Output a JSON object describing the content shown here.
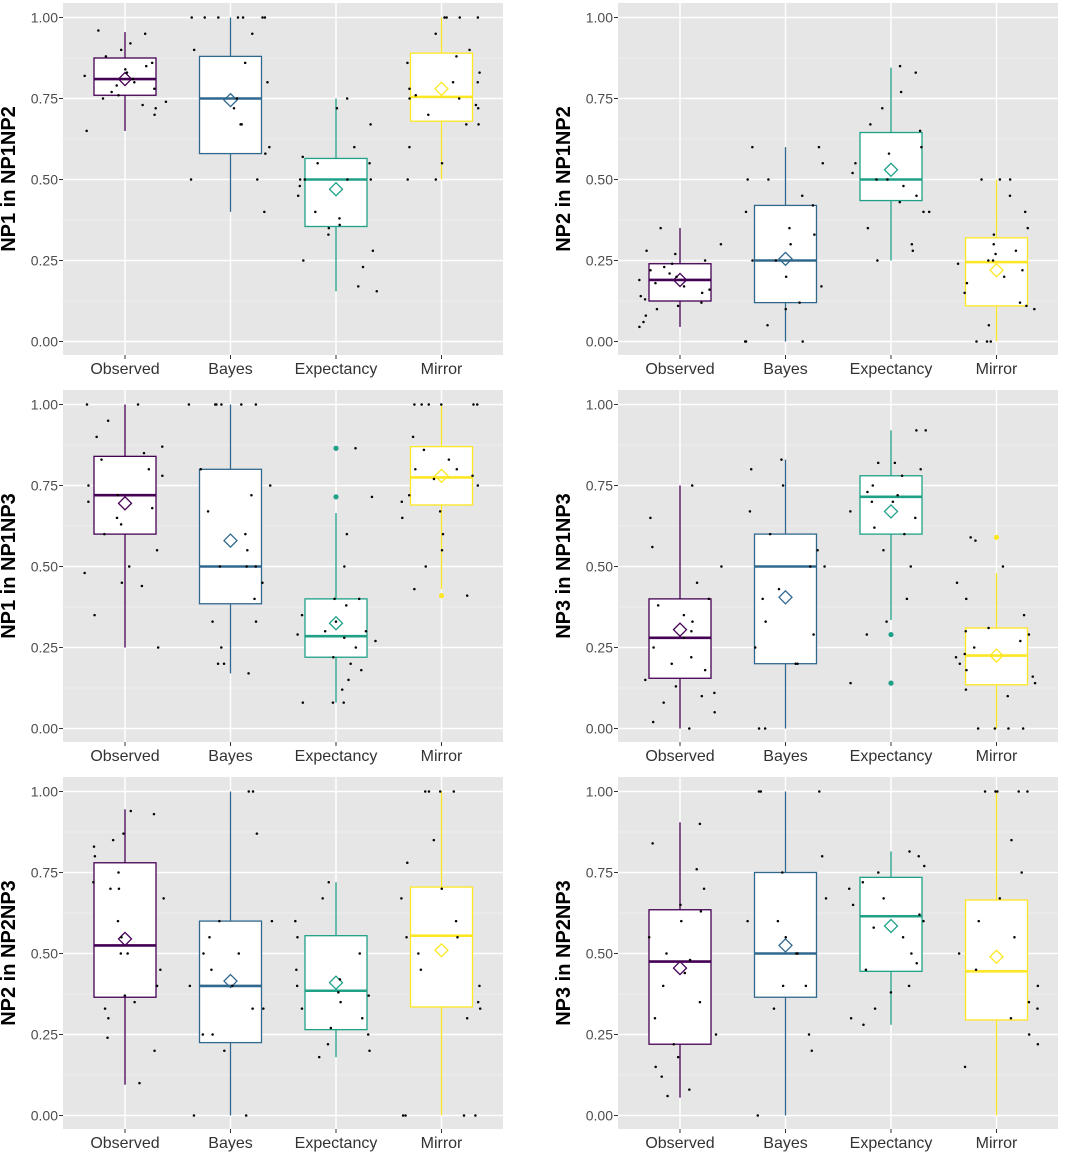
{
  "colors": {
    "Observed": "#440154",
    "Bayes": "#31688e",
    "Expectancy": "#1fa187",
    "Mirror": "#fde725",
    "panel_bg": "#e6e6e6",
    "grid_major": "#ffffff",
    "grid_minor": "#f2f2f2",
    "points": "#000000"
  },
  "chart_data": [
    {
      "type": "box",
      "ylabel": "NP1 in NP1NP2",
      "ylim": [
        0,
        1
      ],
      "yticks": [
        "0.00",
        "0.25",
        "0.50",
        "0.75",
        "1.00"
      ],
      "categories": [
        "Observed",
        "Bayes",
        "Expectancy",
        "Mirror"
      ],
      "boxes": [
        {
          "q1": 0.76,
          "median": 0.81,
          "q3": 0.875,
          "whisker_low": 0.65,
          "whisker_high": 0.955,
          "mean": 0.81,
          "outliers": []
        },
        {
          "q1": 0.58,
          "median": 0.75,
          "q3": 0.88,
          "whisker_low": 0.4,
          "whisker_high": 1.0,
          "mean": 0.745,
          "outliers": []
        },
        {
          "q1": 0.355,
          "median": 0.5,
          "q3": 0.565,
          "whisker_low": 0.155,
          "whisker_high": 0.75,
          "mean": 0.47,
          "outliers": []
        },
        {
          "q1": 0.68,
          "median": 0.755,
          "q3": 0.89,
          "whisker_low": 0.5,
          "whisker_high": 1.0,
          "mean": 0.78,
          "outliers": []
        }
      ],
      "points": [
        [
          0.96,
          0.95,
          0.92,
          0.9,
          0.88,
          0.86,
          0.85,
          0.84,
          0.83,
          0.83,
          0.82,
          0.81,
          0.8,
          0.79,
          0.78,
          0.77,
          0.76,
          0.75,
          0.74,
          0.73,
          0.72,
          0.7,
          0.65
        ],
        [
          1.0,
          1.0,
          1.0,
          1.0,
          1.0,
          1.0,
          1.0,
          0.95,
          0.9,
          0.86,
          0.8,
          0.75,
          0.72,
          0.67,
          0.67,
          0.6,
          0.58,
          0.5,
          0.5,
          0.4
        ],
        [
          0.75,
          0.72,
          0.67,
          0.6,
          0.57,
          0.55,
          0.55,
          0.5,
          0.5,
          0.5,
          0.5,
          0.48,
          0.45,
          0.4,
          0.38,
          0.36,
          0.35,
          0.33,
          0.28,
          0.25,
          0.23,
          0.17,
          0.155
        ],
        [
          1.0,
          1.0,
          1.0,
          1.0,
          0.95,
          0.9,
          0.88,
          0.86,
          0.83,
          0.8,
          0.8,
          0.78,
          0.76,
          0.75,
          0.75,
          0.73,
          0.72,
          0.7,
          0.67,
          0.67,
          0.6,
          0.55,
          0.5,
          0.5
        ]
      ]
    },
    {
      "type": "box",
      "ylabel": "NP2 in NP1NP2",
      "ylim": [
        0,
        1
      ],
      "yticks": [
        "0.00",
        "0.25",
        "0.50",
        "0.75",
        "1.00"
      ],
      "categories": [
        "Observed",
        "Bayes",
        "Expectancy",
        "Mirror"
      ],
      "boxes": [
        {
          "q1": 0.125,
          "median": 0.19,
          "q3": 0.24,
          "whisker_low": 0.045,
          "whisker_high": 0.35,
          "mean": 0.19,
          "outliers": []
        },
        {
          "q1": 0.12,
          "median": 0.25,
          "q3": 0.42,
          "whisker_low": 0.0,
          "whisker_high": 0.6,
          "mean": 0.255,
          "outliers": []
        },
        {
          "q1": 0.435,
          "median": 0.5,
          "q3": 0.645,
          "whisker_low": 0.25,
          "whisker_high": 0.845,
          "mean": 0.53,
          "outliers": []
        },
        {
          "q1": 0.11,
          "median": 0.245,
          "q3": 0.32,
          "whisker_low": 0.0,
          "whisker_high": 0.5,
          "mean": 0.22,
          "outliers": []
        }
      ],
      "points": [
        [
          0.35,
          0.3,
          0.28,
          0.27,
          0.25,
          0.24,
          0.23,
          0.22,
          0.21,
          0.2,
          0.19,
          0.18,
          0.17,
          0.16,
          0.15,
          0.14,
          0.13,
          0.12,
          0.11,
          0.1,
          0.08,
          0.06,
          0.045
        ],
        [
          0.6,
          0.6,
          0.55,
          0.5,
          0.5,
          0.45,
          0.42,
          0.4,
          0.35,
          0.33,
          0.3,
          0.25,
          0.25,
          0.2,
          0.17,
          0.12,
          0.1,
          0.05,
          0.0,
          0.0,
          0.0
        ],
        [
          0.85,
          0.83,
          0.77,
          0.72,
          0.67,
          0.65,
          0.6,
          0.58,
          0.55,
          0.52,
          0.5,
          0.5,
          0.48,
          0.45,
          0.43,
          0.4,
          0.4,
          0.35,
          0.3,
          0.28,
          0.25
        ],
        [
          0.5,
          0.5,
          0.5,
          0.45,
          0.4,
          0.35,
          0.33,
          0.3,
          0.28,
          0.27,
          0.25,
          0.25,
          0.24,
          0.22,
          0.2,
          0.18,
          0.15,
          0.12,
          0.11,
          0.1,
          0.05,
          0.0,
          0.0,
          0.0
        ]
      ]
    },
    {
      "type": "box",
      "ylabel": "NP1 in NP1NP3",
      "ylim": [
        0,
        1
      ],
      "yticks": [
        "0.00",
        "0.25",
        "0.50",
        "0.75",
        "1.00"
      ],
      "categories": [
        "Observed",
        "Bayes",
        "Expectancy",
        "Mirror"
      ],
      "boxes": [
        {
          "q1": 0.6,
          "median": 0.72,
          "q3": 0.84,
          "whisker_low": 0.25,
          "whisker_high": 1.0,
          "mean": 0.695,
          "outliers": []
        },
        {
          "q1": 0.385,
          "median": 0.5,
          "q3": 0.8,
          "whisker_low": 0.17,
          "whisker_high": 1.0,
          "mean": 0.58,
          "outliers": []
        },
        {
          "q1": 0.22,
          "median": 0.285,
          "q3": 0.4,
          "whisker_low": 0.08,
          "whisker_high": 0.665,
          "mean": 0.325,
          "outliers": [
            0.865,
            0.715
          ]
        },
        {
          "q1": 0.69,
          "median": 0.775,
          "q3": 0.87,
          "whisker_low": 0.43,
          "whisker_high": 1.0,
          "mean": 0.78,
          "outliers": [
            0.41
          ]
        }
      ],
      "points": [
        [
          1.0,
          1.0,
          0.95,
          0.9,
          0.87,
          0.85,
          0.83,
          0.8,
          0.78,
          0.75,
          0.72,
          0.7,
          0.68,
          0.65,
          0.63,
          0.6,
          0.55,
          0.5,
          0.48,
          0.45,
          0.44,
          0.35,
          0.25
        ],
        [
          1.0,
          1.0,
          1.0,
          1.0,
          1.0,
          1.0,
          0.8,
          0.75,
          0.72,
          0.67,
          0.6,
          0.55,
          0.5,
          0.5,
          0.5,
          0.45,
          0.4,
          0.33,
          0.33,
          0.25,
          0.2,
          0.2,
          0.17
        ],
        [
          0.865,
          0.715,
          0.6,
          0.5,
          0.4,
          0.4,
          0.38,
          0.35,
          0.33,
          0.3,
          0.3,
          0.29,
          0.28,
          0.27,
          0.25,
          0.22,
          0.2,
          0.18,
          0.15,
          0.12,
          0.08,
          0.08,
          0.08
        ],
        [
          1.0,
          1.0,
          1.0,
          1.0,
          1.0,
          1.0,
          0.9,
          0.86,
          0.83,
          0.8,
          0.8,
          0.78,
          0.77,
          0.75,
          0.72,
          0.7,
          0.67,
          0.65,
          0.6,
          0.55,
          0.5,
          0.43,
          0.41
        ]
      ]
    },
    {
      "type": "box",
      "ylabel": "NP3 in NP1NP3",
      "ylim": [
        0,
        1
      ],
      "yticks": [
        "0.00",
        "0.25",
        "0.50",
        "0.75",
        "1.00"
      ],
      "categories": [
        "Observed",
        "Bayes",
        "Expectancy",
        "Mirror"
      ],
      "boxes": [
        {
          "q1": 0.155,
          "median": 0.28,
          "q3": 0.4,
          "whisker_low": 0.0,
          "whisker_high": 0.75,
          "mean": 0.305,
          "outliers": []
        },
        {
          "q1": 0.2,
          "median": 0.5,
          "q3": 0.6,
          "whisker_low": 0.0,
          "whisker_high": 0.83,
          "mean": 0.405,
          "outliers": []
        },
        {
          "q1": 0.6,
          "median": 0.715,
          "q3": 0.78,
          "whisker_low": 0.335,
          "whisker_high": 0.92,
          "mean": 0.67,
          "outliers": [
            0.29,
            0.14
          ]
        },
        {
          "q1": 0.135,
          "median": 0.225,
          "q3": 0.31,
          "whisker_low": 0.0,
          "whisker_high": 0.48,
          "mean": 0.225,
          "outliers": [
            0.59
          ]
        }
      ],
      "points": [
        [
          0.75,
          0.65,
          0.56,
          0.5,
          0.45,
          0.4,
          0.38,
          0.35,
          0.33,
          0.3,
          0.28,
          0.25,
          0.22,
          0.2,
          0.18,
          0.15,
          0.13,
          0.11,
          0.1,
          0.08,
          0.05,
          0.02,
          0.0
        ],
        [
          0.83,
          0.8,
          0.75,
          0.67,
          0.6,
          0.55,
          0.5,
          0.5,
          0.43,
          0.4,
          0.33,
          0.29,
          0.25,
          0.2,
          0.2,
          0.0,
          0.0
        ],
        [
          0.92,
          0.92,
          0.82,
          0.82,
          0.8,
          0.78,
          0.75,
          0.73,
          0.72,
          0.7,
          0.7,
          0.67,
          0.65,
          0.62,
          0.6,
          0.55,
          0.5,
          0.4,
          0.33,
          0.29,
          0.14
        ],
        [
          0.59,
          0.58,
          0.5,
          0.45,
          0.4,
          0.35,
          0.31,
          0.3,
          0.29,
          0.27,
          0.25,
          0.23,
          0.22,
          0.2,
          0.18,
          0.16,
          0.14,
          0.12,
          0.1,
          0.0,
          0.0,
          0.0,
          0.0
        ]
      ]
    },
    {
      "type": "box",
      "ylabel": "NP2 in NP2NP3",
      "ylim": [
        0,
        1
      ],
      "yticks": [
        "0.00",
        "0.25",
        "0.50",
        "0.75",
        "1.00"
      ],
      "categories": [
        "Observed",
        "Bayes",
        "Expectancy",
        "Mirror"
      ],
      "boxes": [
        {
          "q1": 0.365,
          "median": 0.525,
          "q3": 0.78,
          "whisker_low": 0.095,
          "whisker_high": 0.945,
          "mean": 0.545,
          "outliers": []
        },
        {
          "q1": 0.225,
          "median": 0.4,
          "q3": 0.6,
          "whisker_low": 0.0,
          "whisker_high": 1.0,
          "mean": 0.415,
          "outliers": []
        },
        {
          "q1": 0.265,
          "median": 0.385,
          "q3": 0.555,
          "whisker_low": 0.18,
          "whisker_high": 0.72,
          "mean": 0.41,
          "outliers": []
        },
        {
          "q1": 0.335,
          "median": 0.555,
          "q3": 0.705,
          "whisker_low": 0.0,
          "whisker_high": 1.0,
          "mean": 0.51,
          "outliers": []
        }
      ],
      "points": [
        [
          0.94,
          0.93,
          0.87,
          0.85,
          0.83,
          0.8,
          0.75,
          0.72,
          0.7,
          0.7,
          0.67,
          0.6,
          0.55,
          0.5,
          0.5,
          0.45,
          0.4,
          0.37,
          0.35,
          0.33,
          0.3,
          0.24,
          0.2,
          0.1
        ],
        [
          1.0,
          1.0,
          0.87,
          0.6,
          0.6,
          0.55,
          0.5,
          0.5,
          0.45,
          0.4,
          0.4,
          0.33,
          0.33,
          0.25,
          0.25,
          0.2,
          0.0,
          0.0
        ],
        [
          0.72,
          0.67,
          0.6,
          0.55,
          0.5,
          0.45,
          0.42,
          0.4,
          0.38,
          0.37,
          0.35,
          0.33,
          0.3,
          0.27,
          0.25,
          0.22,
          0.2,
          0.18
        ],
        [
          1.0,
          1.0,
          1.0,
          1.0,
          0.85,
          0.78,
          0.7,
          0.67,
          0.6,
          0.55,
          0.55,
          0.5,
          0.45,
          0.4,
          0.35,
          0.33,
          0.3,
          0.0,
          0.0,
          0.0,
          0.0
        ]
      ]
    },
    {
      "type": "box",
      "ylabel": "NP3 in NP2NP3",
      "ylim": [
        0,
        1
      ],
      "yticks": [
        "0.00",
        "0.25",
        "0.50",
        "0.75",
        "1.00"
      ],
      "categories": [
        "Observed",
        "Bayes",
        "Expectancy",
        "Mirror"
      ],
      "boxes": [
        {
          "q1": 0.22,
          "median": 0.475,
          "q3": 0.635,
          "whisker_low": 0.055,
          "whisker_high": 0.905,
          "mean": 0.455,
          "outliers": []
        },
        {
          "q1": 0.365,
          "median": 0.5,
          "q3": 0.75,
          "whisker_low": 0.0,
          "whisker_high": 1.0,
          "mean": 0.525,
          "outliers": []
        },
        {
          "q1": 0.445,
          "median": 0.615,
          "q3": 0.735,
          "whisker_low": 0.28,
          "whisker_high": 0.815,
          "mean": 0.585,
          "outliers": []
        },
        {
          "q1": 0.295,
          "median": 0.445,
          "q3": 0.665,
          "whisker_low": 0.0,
          "whisker_high": 1.0,
          "mean": 0.49,
          "outliers": []
        }
      ],
      "points": [
        [
          0.9,
          0.84,
          0.76,
          0.7,
          0.65,
          0.63,
          0.6,
          0.55,
          0.5,
          0.48,
          0.44,
          0.4,
          0.35,
          0.3,
          0.25,
          0.22,
          0.18,
          0.15,
          0.12,
          0.08,
          0.06
        ],
        [
          1.0,
          1.0,
          1.0,
          0.8,
          0.75,
          0.67,
          0.6,
          0.6,
          0.55,
          0.5,
          0.5,
          0.4,
          0.4,
          0.33,
          0.25,
          0.2,
          0.0
        ],
        [
          0.815,
          0.8,
          0.77,
          0.75,
          0.72,
          0.7,
          0.67,
          0.65,
          0.62,
          0.6,
          0.58,
          0.55,
          0.5,
          0.47,
          0.45,
          0.4,
          0.38,
          0.33,
          0.3,
          0.28
        ],
        [
          1.0,
          1.0,
          1.0,
          1.0,
          1.0,
          0.85,
          0.75,
          0.67,
          0.6,
          0.55,
          0.5,
          0.45,
          0.4,
          0.35,
          0.33,
          0.3,
          0.25,
          0.22,
          0.15
        ]
      ]
    }
  ]
}
